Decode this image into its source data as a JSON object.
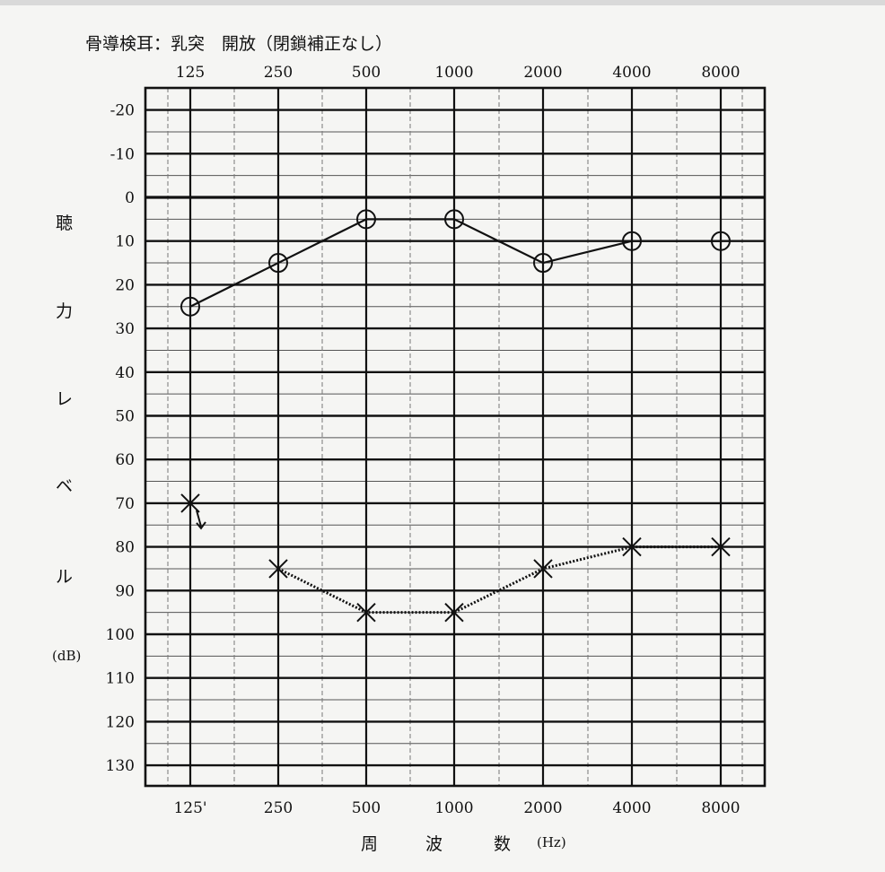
{
  "chart_data": {
    "type": "line",
    "top_caption": "骨導検耳：乳突　開放（閉鎖補正なし）",
    "top_tick_labels": [
      "125",
      "250",
      "500",
      "1000",
      "2000",
      "4000",
      "8000"
    ],
    "categories": [
      "125'",
      "250",
      "500",
      "1000",
      "2000",
      "4000",
      "8000"
    ],
    "xlabel": [
      "周",
      "波",
      "数",
      "(Hz)"
    ],
    "ylabel": [
      "聴",
      "力",
      "レ",
      "ベ",
      "ル",
      "(dB)"
    ],
    "yticks": [
      -20,
      -10,
      0,
      10,
      20,
      30,
      40,
      50,
      60,
      70,
      80,
      90,
      100,
      110,
      120,
      130
    ],
    "ylim": [
      -25,
      135
    ],
    "y_axis": "inverted",
    "grid": true,
    "series": [
      {
        "marker": "O",
        "line": "solid",
        "values": [
          25,
          15,
          5,
          5,
          15,
          10,
          10
        ]
      },
      {
        "marker": "X",
        "line": "dotted",
        "values": [
          70,
          85,
          95,
          95,
          85,
          80,
          80
        ],
        "no_response_arrow_at": "125'"
      }
    ]
  }
}
